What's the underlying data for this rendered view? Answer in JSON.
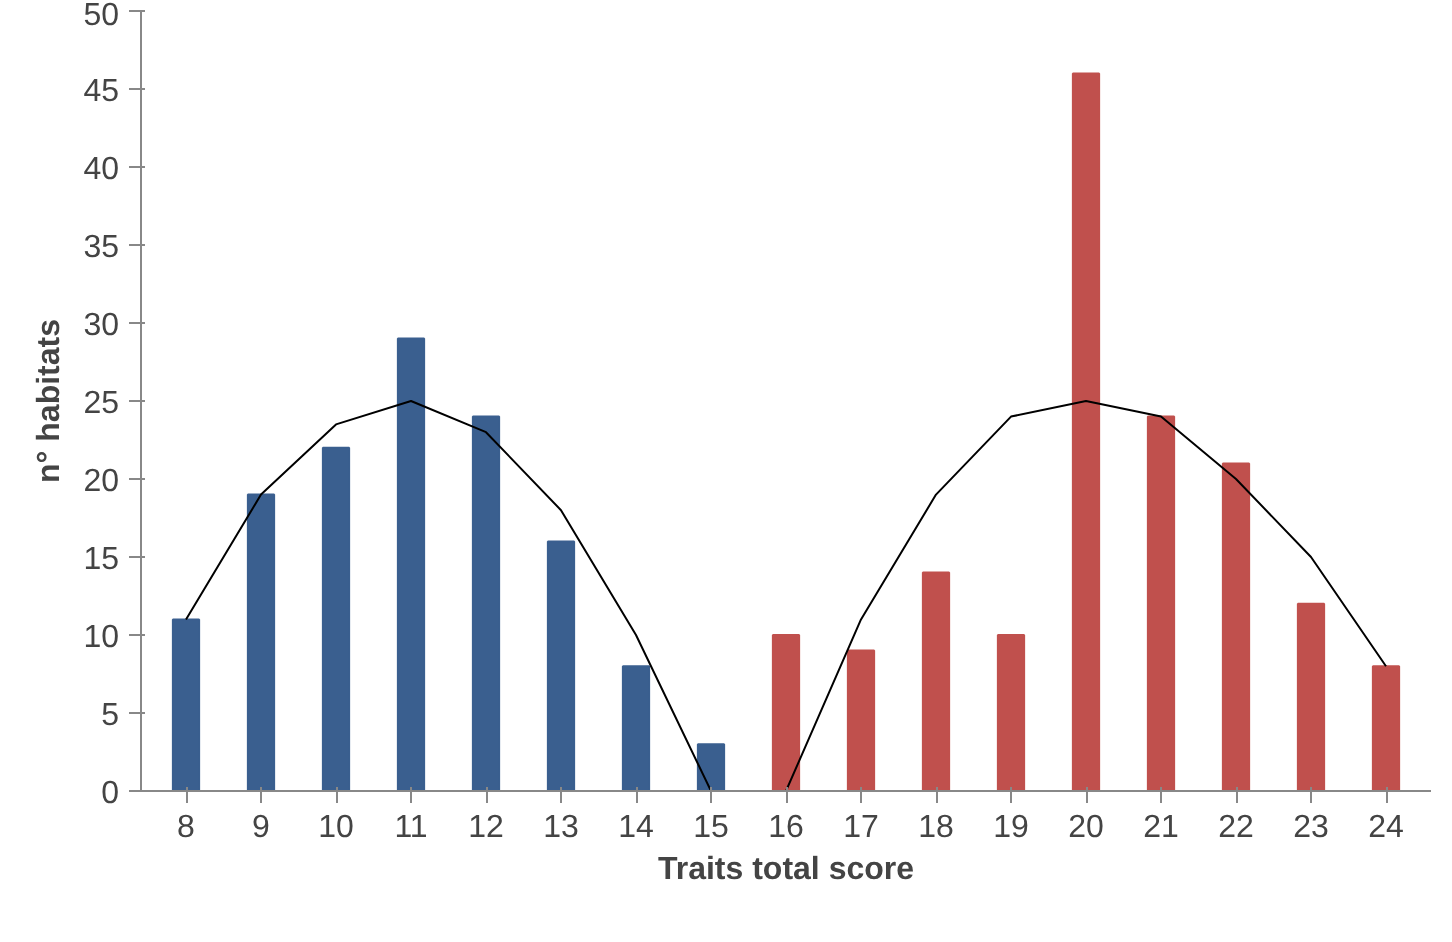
{
  "chart_data": {
    "type": "bar",
    "xlabel": "Traits total score",
    "ylabel": "n° habitats",
    "categories": [
      "8",
      "9",
      "10",
      "11",
      "12",
      "13",
      "14",
      "15",
      "16",
      "17",
      "18",
      "19",
      "20",
      "21",
      "22",
      "23",
      "24"
    ],
    "series": [
      {
        "color": "#3a5f8f",
        "values": [
          11,
          19,
          22,
          29,
          24,
          16,
          8,
          3,
          null,
          null,
          null,
          null,
          null,
          null,
          null,
          null,
          null
        ]
      },
      {
        "color": "#c0504d",
        "values": [
          null,
          null,
          null,
          null,
          null,
          null,
          null,
          null,
          10,
          9,
          14,
          10,
          46,
          24,
          21,
          12,
          8
        ]
      },
      {
        "type": "line",
        "color": "#000000",
        "x": [
          "8",
          "9",
          "10",
          "11",
          "12",
          "13",
          "14",
          "15"
        ],
        "values": [
          11,
          19,
          23.5,
          25,
          23,
          18,
          10,
          0
        ]
      },
      {
        "type": "line",
        "color": "#000000",
        "x": [
          "16",
          "17",
          "18",
          "19",
          "20",
          "21",
          "22",
          "23",
          "24"
        ],
        "values": [
          0,
          11,
          19,
          24,
          25,
          24,
          20,
          15,
          8
        ]
      }
    ],
    "ylim": [
      0,
      50
    ],
    "yticks": [
      0,
      5,
      10,
      15,
      20,
      25,
      30,
      35,
      40,
      45,
      50
    ],
    "grid": false
  }
}
